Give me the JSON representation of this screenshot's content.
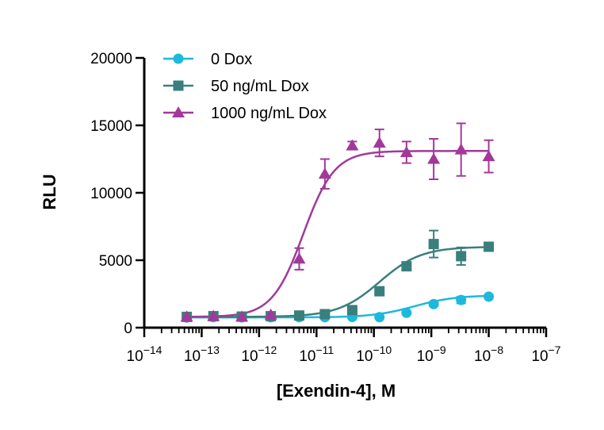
{
  "chart_data": {
    "type": "scatter",
    "xlabel": "[Exendin-4], M",
    "ylabel": "RLU",
    "x_scale": "log10",
    "xlim": [
      1e-14,
      1e-07
    ],
    "ylim": [
      0,
      20000
    ],
    "x_ticks": [
      "10^-14",
      "10^-13",
      "10^-12",
      "10^-11",
      "10^-10",
      "10^-9",
      "10^-8",
      "10^-7"
    ],
    "y_ticks": [
      "0",
      "5000",
      "10000",
      "15000",
      "20000"
    ],
    "legend_position": "top-left",
    "grid": false,
    "series": [
      {
        "name": "0 Dox",
        "marker": "circle",
        "color": "#1EB8DC",
        "x": [
          5.5e-14,
          1.6e-13,
          5e-13,
          1.6e-12,
          5e-12,
          1.4e-11,
          4.2e-11,
          1.25e-10,
          3.7e-10,
          1.1e-09,
          3.3e-09,
          1e-08
        ],
        "y": [
          750,
          780,
          760,
          770,
          780,
          780,
          790,
          780,
          1100,
          1750,
          2050,
          2300
        ],
        "err": [
          0,
          0,
          0,
          0,
          0,
          0,
          0,
          0,
          100,
          150,
          250,
          100
        ],
        "fit": {
          "bottom": 760,
          "top": 2400,
          "log_ec50": -9.3,
          "hill": 1.2
        }
      },
      {
        "name": "50 ng/mL Dox",
        "marker": "square",
        "color": "#3A7F7D",
        "x": [
          5.5e-14,
          1.6e-13,
          5e-13,
          1.6e-12,
          5e-12,
          1.4e-11,
          4.2e-11,
          1.25e-10,
          3.7e-10,
          1.1e-09,
          3.3e-09,
          1e-08
        ],
        "y": [
          800,
          850,
          820,
          850,
          900,
          1000,
          1300,
          2700,
          4550,
          6200,
          5300,
          6000
        ],
        "err": [
          0,
          0,
          0,
          0,
          0,
          0,
          0,
          0,
          0,
          1000,
          650,
          0
        ],
        "fit": {
          "bottom": 800,
          "top": 6000,
          "log_ec50": -9.9,
          "hill": 1.2
        }
      },
      {
        "name": "1000 ng/mL Dox",
        "marker": "triangle",
        "color": "#A2399A",
        "x": [
          5.5e-14,
          1.6e-13,
          5e-13,
          1.6e-12,
          5e-12,
          1.4e-11,
          4.2e-11,
          1.25e-10,
          3.7e-10,
          1.1e-09,
          3.3e-09,
          1e-08
        ],
        "y": [
          800,
          850,
          800,
          950,
          5100,
          11400,
          13500,
          13700,
          13000,
          12500,
          13200,
          12700
        ],
        "err": [
          0,
          0,
          0,
          0,
          800,
          1100,
          300,
          1000,
          800,
          1500,
          1950,
          1200
        ],
        "fit": {
          "bottom": 800,
          "top": 13100,
          "log_ec50": -11.23,
          "hill": 1.6
        }
      }
    ]
  }
}
